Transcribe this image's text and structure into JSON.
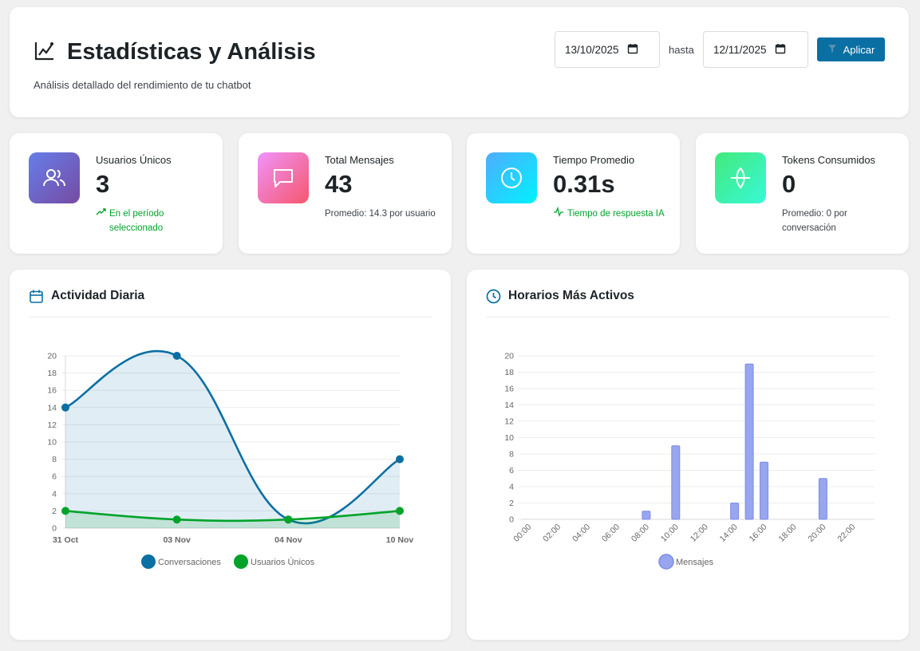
{
  "header": {
    "title": "Estadísticas y Análisis",
    "subtitle": "Análisis detallado del rendimiento de tu chatbot",
    "date_from": "13/10/2025",
    "hasta_label": "hasta",
    "date_to": "12/11/2025",
    "apply_label": "Aplicar"
  },
  "stats": [
    {
      "label": "Usuarios Únicos",
      "value": "3",
      "note": "En el período seleccionado",
      "icon": "users-icon",
      "color_from": "#667eea",
      "color_to": "#764ba2"
    },
    {
      "label": "Total Mensajes",
      "value": "43",
      "note": "Promedio: 14.3 por usuario",
      "icon": "message-icon",
      "color_from": "#f093fb",
      "color_to": "#f5576c"
    },
    {
      "label": "Tiempo Promedio",
      "value": "0.31s",
      "note": "Tiempo de respuesta IA",
      "icon": "clock-icon",
      "color_from": "#4facfe",
      "color_to": "#00f2fe"
    },
    {
      "label": "Tokens Consumidos",
      "value": "0",
      "note": "Promedio: 0 por conversación",
      "icon": "globe-icon",
      "color_from": "#43e97b",
      "color_to": "#38f9d7"
    }
  ],
  "activity": {
    "title": "Actividad Diaria"
  },
  "hours": {
    "title": "Horarios Más Activos"
  },
  "chart_data": [
    {
      "type": "line",
      "title": "Actividad Diaria",
      "categories": [
        "31 Oct",
        "03 Nov",
        "04 Nov",
        "10 Nov"
      ],
      "ylim": [
        0,
        20
      ],
      "yticks": [
        0,
        2,
        4,
        6,
        8,
        10,
        12,
        14,
        16,
        18,
        20
      ],
      "series": [
        {
          "name": "Conversaciones",
          "values": [
            14,
            20,
            1,
            8
          ],
          "color": "#0a6fa3"
        },
        {
          "name": "Usuarios Únicos",
          "values": [
            2,
            1,
            1,
            2
          ],
          "color": "#00a32a"
        }
      ],
      "grid": true,
      "legend": "bottom"
    },
    {
      "type": "bar",
      "title": "Horarios Más Activos",
      "categories": [
        "00:00",
        "01:00",
        "02:00",
        "03:00",
        "04:00",
        "05:00",
        "06:00",
        "07:00",
        "08:00",
        "09:00",
        "10:00",
        "11:00",
        "12:00",
        "13:00",
        "14:00",
        "15:00",
        "16:00",
        "17:00",
        "18:00",
        "19:00",
        "20:00",
        "21:00",
        "22:00",
        "23:00"
      ],
      "tick_labels": [
        "00:00",
        "02:00",
        "04:00",
        "06:00",
        "08:00",
        "10:00",
        "12:00",
        "14:00",
        "16:00",
        "18:00",
        "20:00",
        "22:00"
      ],
      "ylim": [
        0,
        20
      ],
      "yticks": [
        0,
        2,
        4,
        6,
        8,
        10,
        12,
        14,
        16,
        18,
        20
      ],
      "series": [
        {
          "name": "Mensajes",
          "values": [
            0,
            0,
            0,
            0,
            0,
            0,
            0,
            0,
            1,
            0,
            9,
            0,
            0,
            0,
            2,
            19,
            7,
            0,
            0,
            0,
            5,
            0,
            0,
            0
          ],
          "color": "#98a5ef"
        }
      ],
      "grid": true,
      "legend": "bottom"
    }
  ]
}
